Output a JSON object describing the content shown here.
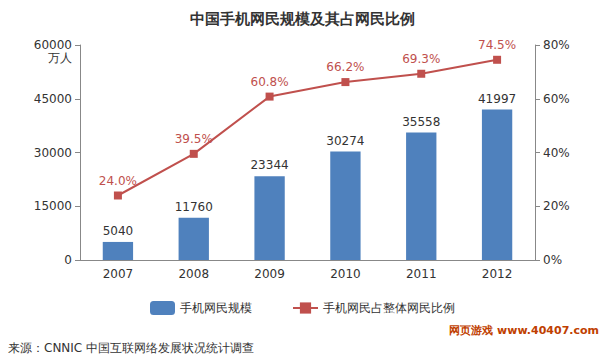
{
  "chart_data": {
    "type": "bar",
    "title": "中国手机网民规模及其占网民比例",
    "ylabel": "万人",
    "annotations": [
      "来源：CNNIC 中国互联网络发展状况统计调查",
      "网页游戏 www.40407.com"
    ],
    "categories": [
      "2007",
      "2008",
      "2009",
      "2010",
      "2011",
      "2012"
    ],
    "series": [
      {
        "name": "手机网民规模",
        "type": "bar",
        "color": "#4f81bd",
        "values": [
          5040,
          11760,
          23344,
          30274,
          35558,
          41997
        ]
      },
      {
        "name": "手机网民占整体网民比例",
        "type": "line",
        "axis": "y2",
        "color": "#c0504d",
        "marker": "square",
        "values": [
          24.0,
          39.5,
          60.8,
          66.2,
          69.3,
          74.5
        ],
        "value_labels": [
          "24.0%",
          "39.5%",
          "60.8%",
          "66.2%",
          "69.3%",
          "74.5%"
        ]
      }
    ],
    "ylim": [
      0,
      60000
    ],
    "yticks": [
      0,
      15000,
      30000,
      45000,
      60000
    ],
    "y2lim": [
      0,
      80
    ],
    "y2ticks": [
      {
        "value": 0,
        "label": "0%"
      },
      {
        "value": 20,
        "label": "20%"
      },
      {
        "value": 40,
        "label": "40%"
      },
      {
        "value": 60,
        "label": "60%"
      },
      {
        "value": 80,
        "label": "80%"
      }
    ],
    "legend": "bottom",
    "grid": false,
    "data_labels": true
  }
}
